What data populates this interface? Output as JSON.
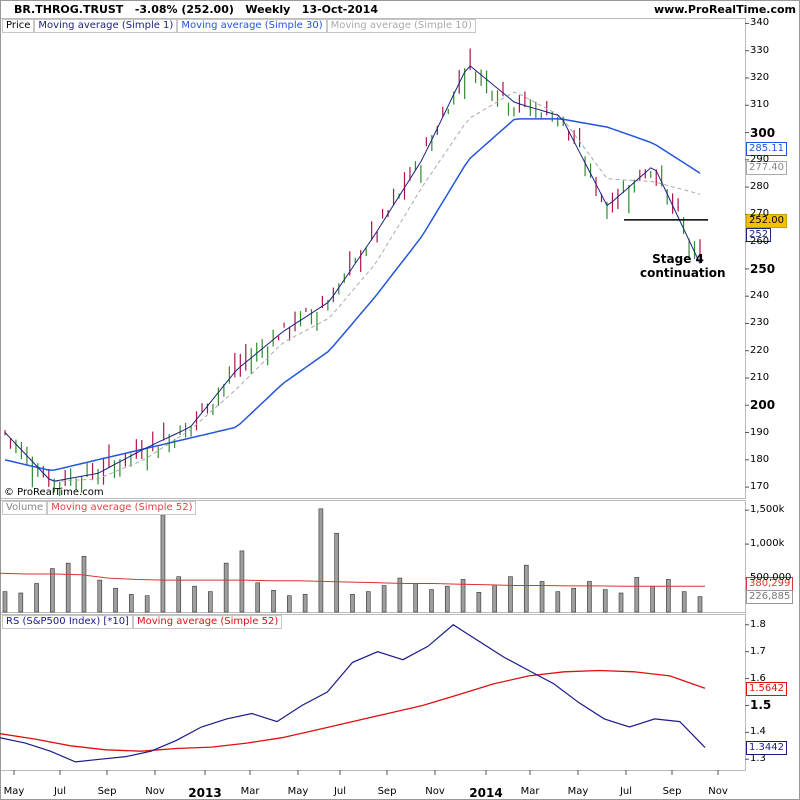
{
  "header": {
    "ticker": "BR.THROG.TRUST",
    "change": "-3.08% (252.00)",
    "period": "Weekly",
    "date": "13-Oct-2014",
    "site": "www.ProRealTime.com"
  },
  "copyright": "© ProRealTime.com",
  "annotation": {
    "line1": "Stage 4",
    "line2": "continuation"
  },
  "colors": {
    "up_candle": "#2e8b2e",
    "down_candle": "#b0104a",
    "price_line": "#000000",
    "ma1": "#1a237e",
    "ma30": "#2255dd",
    "ma10": "#aaaaaa",
    "volume_bar": "#9e9e9e",
    "vol_ma": "#dd3333",
    "rs_line": "#1a1a8c",
    "rs_ma": "#dd1111",
    "tag_price": "#f2c200"
  },
  "panels": {
    "price": {
      "legend": [
        "Price",
        "Moving average (Simple 1)",
        "Moving average (Simple 30)",
        "Moving average (Simple 10)"
      ],
      "yticks": [
        "340",
        "330",
        "320",
        "310",
        "300",
        "290",
        "280",
        "270",
        "260",
        "250",
        "240",
        "230",
        "220",
        "210",
        "200",
        "190",
        "180",
        "170"
      ],
      "bold_ticks": [
        "300",
        "250",
        "200"
      ],
      "tags": {
        "ma30": "285.11",
        "ma10": "277.40",
        "price": "252.00",
        "ma1": "252"
      }
    },
    "volume": {
      "legend": [
        "Volume",
        "Moving average (Simple 52)"
      ],
      "yticks": [
        "1,500k",
        "1,000k",
        "500,000"
      ],
      "tags": {
        "ma": "380,299",
        "vol": "226,885"
      }
    },
    "rs": {
      "legend": [
        "RS (S&P500 Index) [*10]",
        "Moving average (Simple 52)"
      ],
      "yticks": [
        "1.8",
        "1.7",
        "1.6",
        "1.5",
        "1.4",
        "1.3"
      ],
      "bold_ticks": [
        "1.5"
      ],
      "tags": {
        "ma": "1.5642",
        "rs": "1.3442"
      }
    }
  },
  "x_axis": {
    "labels": [
      "May",
      "Jul",
      "Sep",
      "Nov",
      "2013",
      "Mar",
      "May",
      "Jul",
      "Sep",
      "Nov",
      "2014",
      "Mar",
      "May",
      "Jul",
      "Sep",
      "Nov"
    ],
    "bold": [
      "2013",
      "2014"
    ]
  },
  "chart_data": [
    {
      "type": "line",
      "title": "BR.THROG.TRUST Weekly price",
      "x": [
        "2012-05",
        "2012-07",
        "2012-09",
        "2012-11",
        "2013-01",
        "2013-03",
        "2013-05",
        "2013-07",
        "2013-09",
        "2013-11",
        "2014-01",
        "2014-03",
        "2014-05",
        "2014-07",
        "2014-09",
        "2014-10"
      ],
      "ylim": [
        166,
        342
      ],
      "series": [
        {
          "name": "Moving average (Simple 1)",
          "values": [
            190,
            172,
            175,
            184,
            192,
            213,
            227,
            238,
            263,
            290,
            325,
            311,
            306,
            273,
            288,
            252
          ]
        },
        {
          "name": "Moving average (Simple 30)",
          "values": [
            180,
            176,
            180,
            184,
            188,
            192,
            208,
            220,
            240,
            262,
            290,
            305,
            305,
            302,
            296,
            285.11
          ]
        },
        {
          "name": "Moving average (Simple 10)",
          "values": [
            190,
            172,
            173,
            180,
            191,
            206,
            223,
            232,
            252,
            280,
            305,
            315,
            306,
            283,
            282,
            277.4
          ]
        }
      ],
      "annotation_level": 268
    },
    {
      "type": "bar",
      "title": "Volume",
      "ylim": [
        0,
        1650000
      ],
      "series": [
        {
          "name": "Volume",
          "values": [
            300000,
            280000,
            420000,
            640000,
            720000,
            820000,
            470000,
            350000,
            260000,
            240000,
            1430000,
            520000,
            380000,
            300000,
            720000,
            900000,
            430000,
            320000,
            240000,
            260000,
            1520000,
            1160000,
            260000,
            300000,
            390000,
            500000,
            420000,
            330000,
            380000,
            480000,
            290000,
            400000,
            520000,
            690000,
            450000,
            300000,
            350000,
            450000,
            330000,
            280000,
            510000,
            380000,
            480000,
            300000,
            226885
          ]
        },
        {
          "name": "Moving average (Simple 52)",
          "values": [
            570000,
            560000,
            560000,
            550000,
            500000,
            480000,
            470000,
            470000,
            470000,
            470000,
            460000,
            460000,
            450000,
            440000,
            430000,
            420000,
            420000,
            410000,
            400000,
            390000,
            390000,
            385000,
            385000,
            380000,
            380000,
            380000,
            380299
          ]
        }
      ]
    },
    {
      "type": "line",
      "title": "RS (S&P500 Index) [*10]",
      "ylim": [
        1.26,
        1.84
      ],
      "series": [
        {
          "name": "RS (S&P500 Index) [*10]",
          "values": [
            1.38,
            1.36,
            1.33,
            1.29,
            1.3,
            1.31,
            1.33,
            1.37,
            1.42,
            1.45,
            1.47,
            1.44,
            1.5,
            1.55,
            1.66,
            1.7,
            1.67,
            1.72,
            1.8,
            1.74,
            1.68,
            1.63,
            1.58,
            1.51,
            1.45,
            1.42,
            1.45,
            1.44,
            1.3442
          ]
        },
        {
          "name": "Moving average (Simple 52)",
          "values": [
            1.395,
            1.375,
            1.35,
            1.335,
            1.33,
            1.34,
            1.345,
            1.36,
            1.38,
            1.41,
            1.44,
            1.47,
            1.5,
            1.54,
            1.58,
            1.61,
            1.625,
            1.63,
            1.625,
            1.61,
            1.5642
          ]
        }
      ]
    }
  ]
}
